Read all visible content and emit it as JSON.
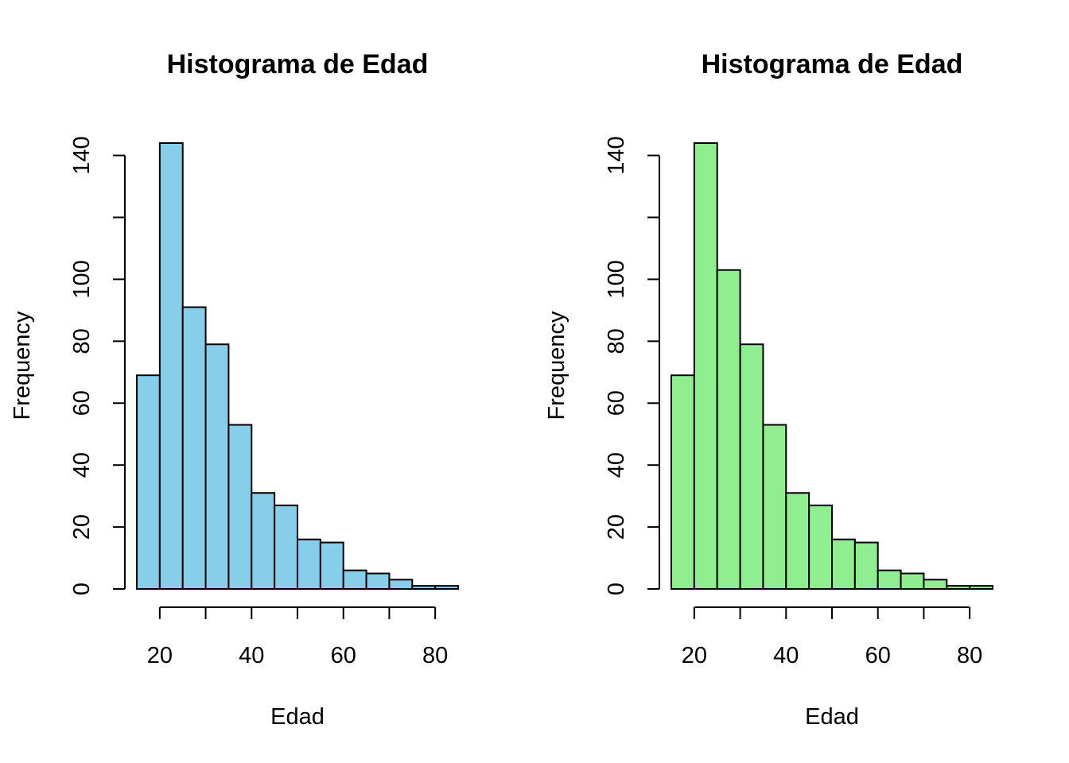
{
  "chart_data": [
    {
      "type": "bar",
      "title": "Histograma de Edad",
      "xlabel": "Edad",
      "ylabel": "Frequency",
      "fill_color": "#87CEEB",
      "bin_edges": [
        15,
        20,
        25,
        30,
        35,
        40,
        45,
        50,
        55,
        60,
        65,
        70,
        75,
        80,
        85
      ],
      "values": [
        69,
        144,
        91,
        79,
        53,
        31,
        27,
        16,
        15,
        6,
        5,
        3,
        1,
        1
      ],
      "xlim": [
        15,
        85
      ],
      "ylim": [
        0,
        144
      ],
      "x_ticks": [
        20,
        30,
        40,
        50,
        60,
        70,
        80
      ],
      "x_tick_labels": [
        "20",
        "40",
        "60",
        "80"
      ],
      "x_tick_label_values": [
        20,
        40,
        60,
        80
      ],
      "y_ticks": [
        0,
        20,
        40,
        60,
        80,
        100,
        120,
        140
      ],
      "y_tick_labels": [
        "0",
        "20",
        "40",
        "60",
        "80",
        "100",
        "140"
      ],
      "y_tick_label_values": [
        0,
        20,
        40,
        60,
        80,
        100,
        140
      ],
      "grid": false
    },
    {
      "type": "bar",
      "title": "Histograma de Edad",
      "xlabel": "Edad",
      "ylabel": "Frequency",
      "fill_color": "#90EE90",
      "bin_edges": [
        15,
        20,
        25,
        30,
        35,
        40,
        45,
        50,
        55,
        60,
        65,
        70,
        75,
        80,
        85
      ],
      "values": [
        69,
        144,
        103,
        79,
        53,
        31,
        27,
        16,
        15,
        6,
        5,
        3,
        1,
        1
      ],
      "xlim": [
        15,
        85
      ],
      "ylim": [
        0,
        144
      ],
      "x_ticks": [
        20,
        30,
        40,
        50,
        60,
        70,
        80
      ],
      "x_tick_labels": [
        "20",
        "40",
        "60",
        "80"
      ],
      "x_tick_label_values": [
        20,
        40,
        60,
        80
      ],
      "y_ticks": [
        0,
        20,
        40,
        60,
        80,
        100,
        120,
        140
      ],
      "y_tick_labels": [
        "0",
        "20",
        "40",
        "60",
        "80",
        "100",
        "140"
      ],
      "y_tick_label_values": [
        0,
        20,
        40,
        60,
        80,
        100,
        140
      ],
      "grid": false
    }
  ]
}
